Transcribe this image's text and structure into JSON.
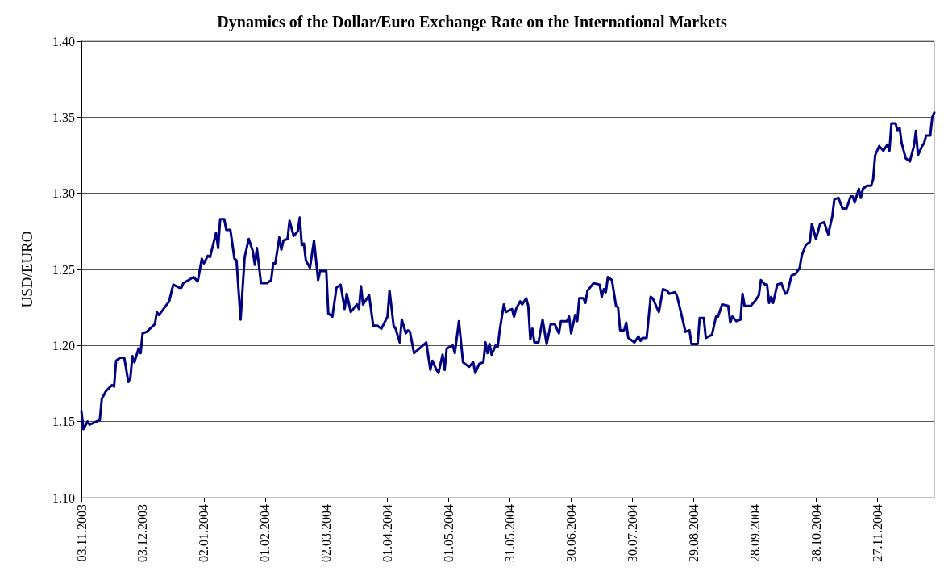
{
  "chart_data": {
    "type": "line",
    "title": "Dynamics of the Dollar/Euro Exchange Rate on the International Markets",
    "ylabel": "USD/EURO",
    "x": [
      "2003-11-03",
      "2003-11-04",
      "2003-11-06",
      "2003-11-07",
      "2003-11-12",
      "2003-11-13",
      "2003-11-15",
      "2003-11-18",
      "2003-11-19",
      "2003-11-20",
      "2003-11-22",
      "2003-11-24",
      "2003-11-26",
      "2003-11-27",
      "2003-11-28",
      "2003-11-29",
      "2003-12-01",
      "2003-12-02",
      "2003-12-03",
      "2003-12-05",
      "2003-12-09",
      "2003-12-10",
      "2003-12-11",
      "2003-12-16",
      "2003-12-18",
      "2003-12-21",
      "2003-12-22",
      "2003-12-23",
      "2003-12-28",
      "2003-12-30",
      "2004-01-01",
      "2004-01-02",
      "2004-01-04",
      "2004-01-05",
      "2004-01-08",
      "2004-01-09",
      "2004-01-10",
      "2004-01-12",
      "2004-01-13",
      "2004-01-15",
      "2004-01-17",
      "2004-01-18",
      "2004-01-20",
      "2004-01-22",
      "2004-01-24",
      "2004-01-26",
      "2004-01-27",
      "2004-01-28",
      "2004-01-30",
      "2004-02-02",
      "2004-02-04",
      "2004-02-05",
      "2004-02-06",
      "2004-02-08",
      "2004-02-09",
      "2004-02-10",
      "2004-02-12",
      "2004-02-13",
      "2004-02-15",
      "2004-02-17",
      "2004-02-18",
      "2004-02-19",
      "2004-02-20",
      "2004-02-21",
      "2004-02-23",
      "2004-02-25",
      "2004-02-27",
      "2004-02-28",
      "2004-03-02",
      "2004-03-03",
      "2004-03-05",
      "2004-03-07",
      "2004-03-09",
      "2004-03-11",
      "2004-03-12",
      "2004-03-14",
      "2004-03-17",
      "2004-03-18",
      "2004-03-19",
      "2004-03-20",
      "2004-03-23",
      "2004-03-25",
      "2004-03-27",
      "2004-03-29",
      "2004-04-01",
      "2004-04-02",
      "2004-04-04",
      "2004-04-05",
      "2004-04-07",
      "2004-04-08",
      "2004-04-10",
      "2004-04-11",
      "2004-04-12",
      "2004-04-14",
      "2004-04-20",
      "2004-04-22",
      "2004-04-23",
      "2004-04-25",
      "2004-04-26",
      "2004-04-28",
      "2004-04-29",
      "2004-04-30",
      "2004-05-03",
      "2004-05-04",
      "2004-05-06",
      "2004-05-08",
      "2004-05-11",
      "2004-05-13",
      "2004-05-14",
      "2004-05-16",
      "2004-05-18",
      "2004-05-19",
      "2004-05-20",
      "2004-05-21",
      "2004-05-22",
      "2004-05-24",
      "2004-05-25",
      "2004-05-26",
      "2004-05-28",
      "2004-05-29",
      "2004-06-01",
      "2004-06-02",
      "2004-06-03",
      "2004-06-05",
      "2004-06-06",
      "2004-06-08",
      "2004-06-09",
      "2004-06-10",
      "2004-06-11",
      "2004-06-12",
      "2004-06-14",
      "2004-06-16",
      "2004-06-18",
      "2004-06-20",
      "2004-06-22",
      "2004-06-24",
      "2004-06-25",
      "2004-06-28",
      "2004-06-29",
      "2004-06-30",
      "2004-07-02",
      "2004-07-03",
      "2004-07-04",
      "2004-07-06",
      "2004-07-07",
      "2004-07-08",
      "2004-07-11",
      "2004-07-14",
      "2004-07-15",
      "2004-07-16",
      "2004-07-17",
      "2004-07-18",
      "2004-07-20",
      "2004-07-22",
      "2004-07-23",
      "2004-07-24",
      "2004-07-26",
      "2004-07-27",
      "2004-07-28",
      "2004-07-31",
      "2004-08-02",
      "2004-08-03",
      "2004-08-04",
      "2004-08-06",
      "2004-08-08",
      "2004-08-09",
      "2004-08-12",
      "2004-08-14",
      "2004-08-16",
      "2004-08-17",
      "2004-08-20",
      "2004-08-21",
      "2004-08-24",
      "2004-08-25",
      "2004-08-27",
      "2004-08-28",
      "2004-08-31",
      "2004-09-01",
      "2004-09-03",
      "2004-09-04",
      "2004-09-07",
      "2004-09-09",
      "2004-09-10",
      "2004-09-12",
      "2004-09-15",
      "2004-09-16",
      "2004-09-17",
      "2004-09-19",
      "2004-09-21",
      "2004-09-22",
      "2004-09-23",
      "2004-09-26",
      "2004-09-28",
      "2004-09-30",
      "2004-10-01",
      "2004-10-03",
      "2004-10-04",
      "2004-10-05",
      "2004-10-06",
      "2004-10-07",
      "2004-10-09",
      "2004-10-11",
      "2004-10-13",
      "2004-10-14",
      "2004-10-16",
      "2004-10-18",
      "2004-10-20",
      "2004-10-21",
      "2004-10-23",
      "2004-10-25",
      "2004-10-26",
      "2004-10-28",
      "2004-10-30",
      "2004-11-01",
      "2004-11-03",
      "2004-11-05",
      "2004-11-06",
      "2004-11-08",
      "2004-11-10",
      "2004-11-12",
      "2004-11-14",
      "2004-11-15",
      "2004-11-16",
      "2004-11-18",
      "2004-11-19",
      "2004-11-20",
      "2004-11-22",
      "2004-11-24",
      "2004-11-25",
      "2004-11-26",
      "2004-11-28",
      "2004-11-30",
      "2004-12-02",
      "2004-12-03",
      "2004-12-04",
      "2004-12-06",
      "2004-12-07",
      "2004-12-08",
      "2004-12-09",
      "2004-12-11",
      "2004-12-13",
      "2004-12-15",
      "2004-12-16",
      "2004-12-17",
      "2004-12-19",
      "2004-12-20",
      "2004-12-21",
      "2004-12-23",
      "2004-12-24",
      "2004-12-25"
    ],
    "series": [
      {
        "color": "#000080",
        "values": [
          1.157,
          1.145,
          1.15,
          1.148,
          1.151,
          1.165,
          1.17,
          1.174,
          1.173,
          1.19,
          1.192,
          1.192,
          1.176,
          1.179,
          1.193,
          1.189,
          1.198,
          1.195,
          1.208,
          1.209,
          1.214,
          1.222,
          1.22,
          1.229,
          1.24,
          1.238,
          1.238,
          1.241,
          1.245,
          1.242,
          1.257,
          1.254,
          1.259,
          1.258,
          1.274,
          1.264,
          1.283,
          1.283,
          1.276,
          1.276,
          1.257,
          1.256,
          1.217,
          1.258,
          1.27,
          1.262,
          1.253,
          1.264,
          1.241,
          1.241,
          1.243,
          1.254,
          1.254,
          1.271,
          1.263,
          1.269,
          1.27,
          1.282,
          1.272,
          1.275,
          1.284,
          1.266,
          1.267,
          1.256,
          1.251,
          1.269,
          1.243,
          1.249,
          1.249,
          1.221,
          1.219,
          1.238,
          1.24,
          1.224,
          1.234,
          1.222,
          1.227,
          1.224,
          1.239,
          1.227,
          1.233,
          1.213,
          1.213,
          1.211,
          1.219,
          1.236,
          1.213,
          1.211,
          1.202,
          1.217,
          1.208,
          1.21,
          1.209,
          1.195,
          1.202,
          1.184,
          1.19,
          1.184,
          1.182,
          1.194,
          1.184,
          1.198,
          1.2,
          1.195,
          1.216,
          1.189,
          1.186,
          1.189,
          1.182,
          1.188,
          1.189,
          1.202,
          1.195,
          1.201,
          1.194,
          1.2,
          1.199,
          1.21,
          1.227,
          1.222,
          1.224,
          1.219,
          1.224,
          1.229,
          1.227,
          1.231,
          1.226,
          1.204,
          1.211,
          1.202,
          1.202,
          1.217,
          1.201,
          1.214,
          1.214,
          1.208,
          1.216,
          1.216,
          1.219,
          1.208,
          1.22,
          1.216,
          1.231,
          1.231,
          1.228,
          1.236,
          1.241,
          1.24,
          1.232,
          1.237,
          1.235,
          1.245,
          1.243,
          1.226,
          1.225,
          1.21,
          1.21,
          1.215,
          1.205,
          1.202,
          1.206,
          1.203,
          1.205,
          1.205,
          1.232,
          1.231,
          1.222,
          1.237,
          1.236,
          1.234,
          1.235,
          1.232,
          1.215,
          1.209,
          1.21,
          1.201,
          1.201,
          1.218,
          1.218,
          1.205,
          1.207,
          1.219,
          1.219,
          1.227,
          1.226,
          1.215,
          1.219,
          1.216,
          1.217,
          1.234,
          1.226,
          1.226,
          1.229,
          1.233,
          1.243,
          1.24,
          1.24,
          1.228,
          1.232,
          1.228,
          1.24,
          1.241,
          1.234,
          1.235,
          1.246,
          1.247,
          1.251,
          1.259,
          1.266,
          1.268,
          1.28,
          1.27,
          1.28,
          1.281,
          1.273,
          1.285,
          1.296,
          1.297,
          1.29,
          1.29,
          1.298,
          1.298,
          1.294,
          1.303,
          1.297,
          1.303,
          1.305,
          1.305,
          1.309,
          1.325,
          1.331,
          1.328,
          1.332,
          1.328,
          1.346,
          1.346,
          1.341,
          1.343,
          1.333,
          1.323,
          1.321,
          1.331,
          1.341,
          1.325,
          1.331,
          1.333,
          1.338,
          1.338,
          1.35,
          1.353
        ]
      }
    ],
    "xlim": [
      "2003-11-03",
      "2004-12-25"
    ],
    "xticks": [
      {
        "value": "2003-11-03",
        "label": "03.11.2003"
      },
      {
        "value": "2003-12-03",
        "label": "03.12.2003"
      },
      {
        "value": "2004-01-02",
        "label": "02.01.2004"
      },
      {
        "value": "2004-02-01",
        "label": "01.02.2004"
      },
      {
        "value": "2004-03-02",
        "label": "02.03.2004"
      },
      {
        "value": "2004-04-01",
        "label": "01.04.2004"
      },
      {
        "value": "2004-05-01",
        "label": "01.05.2004"
      },
      {
        "value": "2004-05-31",
        "label": "31.05.2004"
      },
      {
        "value": "2004-06-30",
        "label": "30.06.2004"
      },
      {
        "value": "2004-07-30",
        "label": "30.07.2004"
      },
      {
        "value": "2004-08-29",
        "label": "29.08.2004"
      },
      {
        "value": "2004-09-28",
        "label": "28.09.2004"
      },
      {
        "value": "2004-10-28",
        "label": "28.10.2004"
      },
      {
        "value": "2004-11-27",
        "label": "27.11.2004"
      }
    ],
    "ylim": [
      1.1,
      1.4
    ],
    "yticks": [
      {
        "value": 1.1,
        "label": "1.10"
      },
      {
        "value": 1.15,
        "label": "1.15"
      },
      {
        "value": 1.2,
        "label": "1.20"
      },
      {
        "value": 1.25,
        "label": "1.25"
      },
      {
        "value": 1.3,
        "label": "1.30"
      },
      {
        "value": 1.35,
        "label": "1.35"
      },
      {
        "value": 1.4,
        "label": "1.40"
      }
    ],
    "grid": "y",
    "marker": "none",
    "line_style": "solid"
  }
}
